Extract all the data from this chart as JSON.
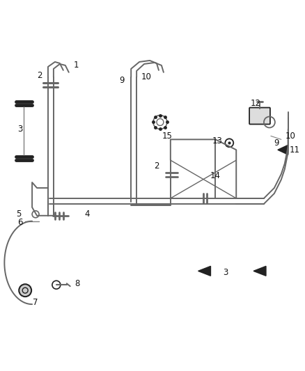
{
  "bg_color": "#ffffff",
  "line_color": "#666666",
  "dark_color": "#222222",
  "label_color": "#111111",
  "figsize": [
    4.38,
    5.33
  ],
  "dpi": 100
}
